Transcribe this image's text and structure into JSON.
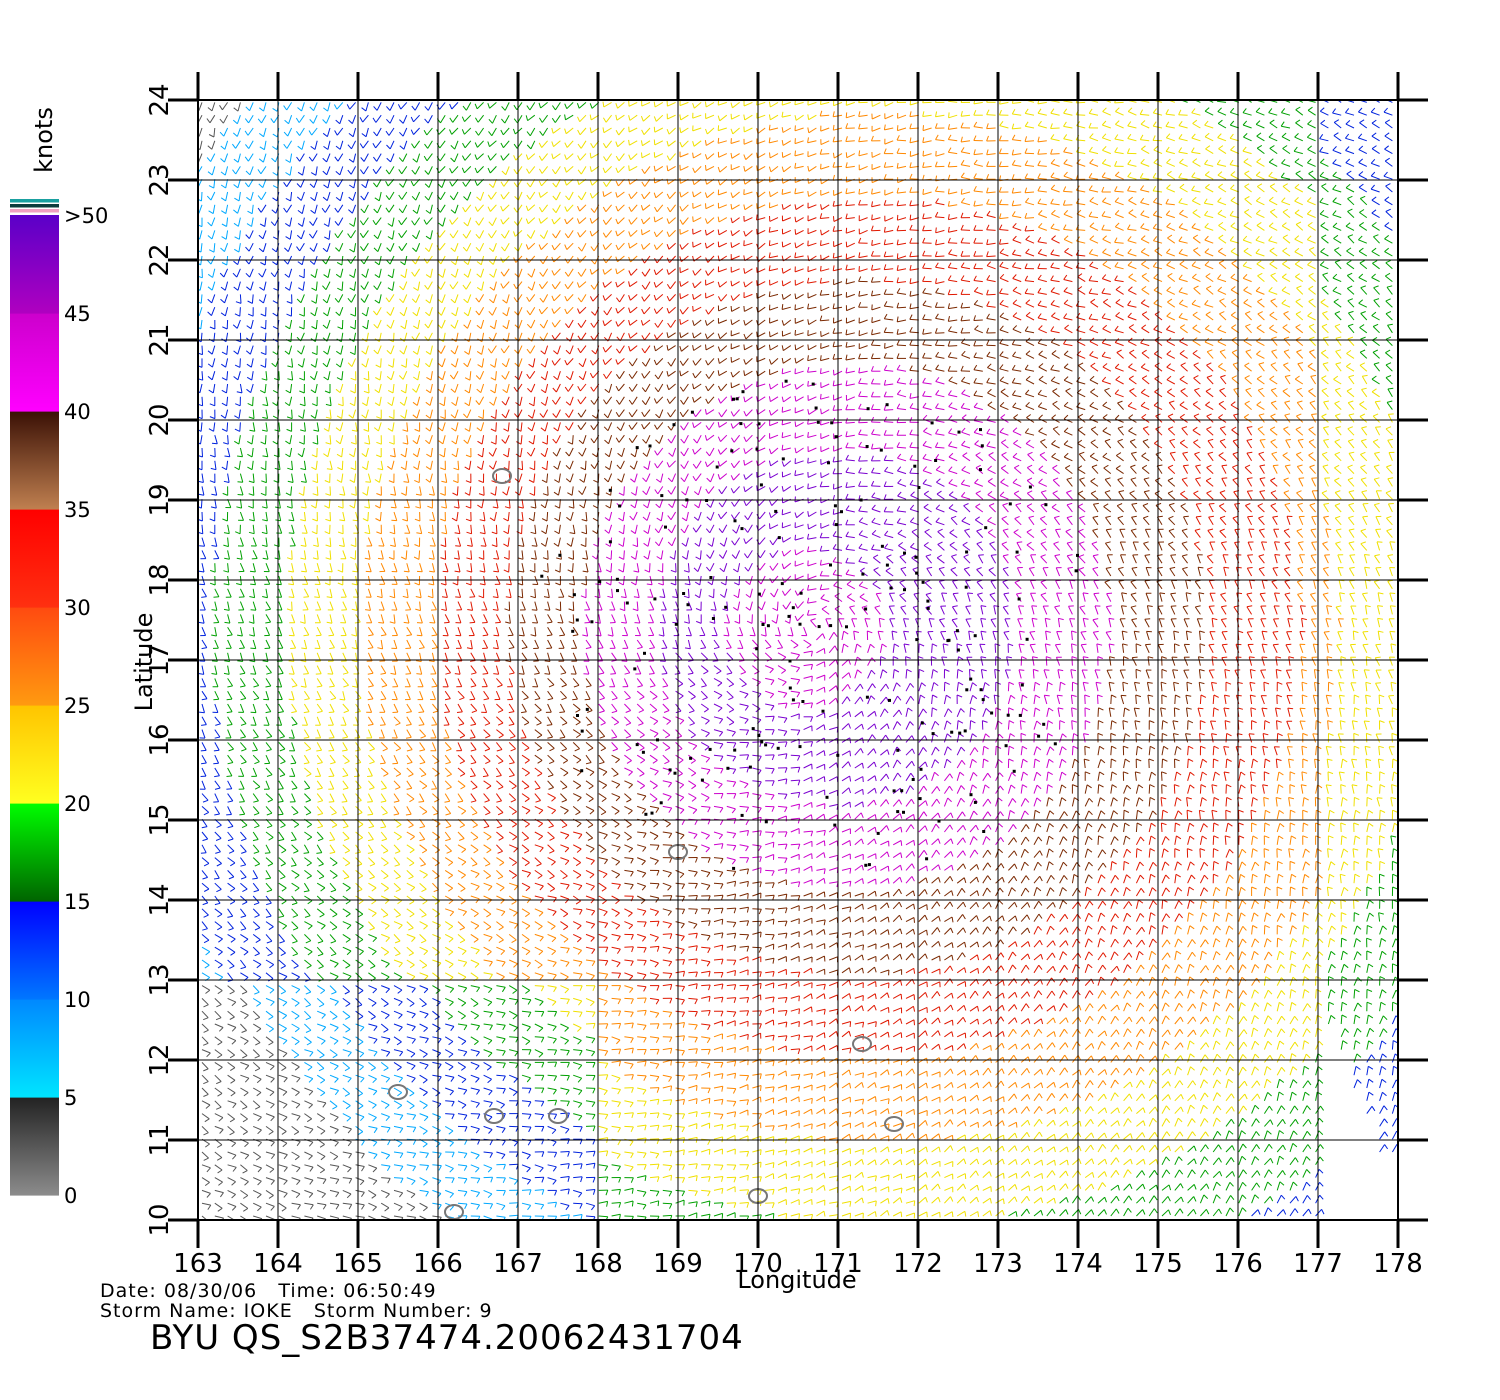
{
  "map": {
    "xlabel": "Longitude",
    "ylabel": "Latitude",
    "lon_ticks": [
      163,
      164,
      165,
      166,
      167,
      168,
      169,
      170,
      171,
      172,
      173,
      174,
      175,
      176,
      177,
      178
    ],
    "lat_ticks": [
      10,
      11,
      12,
      13,
      14,
      15,
      16,
      17,
      18,
      19,
      20,
      21,
      22,
      23,
      24
    ],
    "lon_range": [
      163,
      178
    ],
    "lat_range": [
      10,
      24
    ],
    "grid": true,
    "storm_center": {
      "lon": 170.7,
      "lat": 17.4
    }
  },
  "legend": {
    "unit": "knots",
    "labels": [
      "0",
      "5",
      "10",
      "15",
      "20",
      "25",
      "30",
      "35",
      "40",
      "45",
      ">50"
    ],
    "bands": [
      {
        "range": "0-5",
        "colors": [
          "#8c8c8c",
          "#222222"
        ]
      },
      {
        "range": "5-10",
        "colors": [
          "#00e5ff",
          "#0088ff"
        ]
      },
      {
        "range": "10-15",
        "colors": [
          "#0077ff",
          "#0000ff"
        ]
      },
      {
        "range": "15-20",
        "colors": [
          "#006400",
          "#00ff00"
        ]
      },
      {
        "range": "20-25",
        "colors": [
          "#ffff20",
          "#ffc400"
        ]
      },
      {
        "range": "25-30",
        "colors": [
          "#ff9a10",
          "#ff4a10"
        ]
      },
      {
        "range": "30-35",
        "colors": [
          "#ff3010",
          "#ff0000"
        ]
      },
      {
        "range": "35-40",
        "colors": [
          "#c08050",
          "#3a1005"
        ]
      },
      {
        "range": "40-45",
        "colors": [
          "#ff00ff",
          "#cc00cc"
        ]
      },
      {
        "range": "45-50",
        "colors": [
          "#b000c0",
          "#5a00c8"
        ]
      }
    ]
  },
  "footer": {
    "date_label": "Date:",
    "date": "08/30/06",
    "time_label": "Time:",
    "time": "06:50:49",
    "storm_name_label": "Storm Name:",
    "storm_name": "IOKE",
    "storm_number_label": "Storm Number:",
    "storm_number": "9",
    "product_id": "BYU  QS_S2B37474.20062431704"
  }
}
